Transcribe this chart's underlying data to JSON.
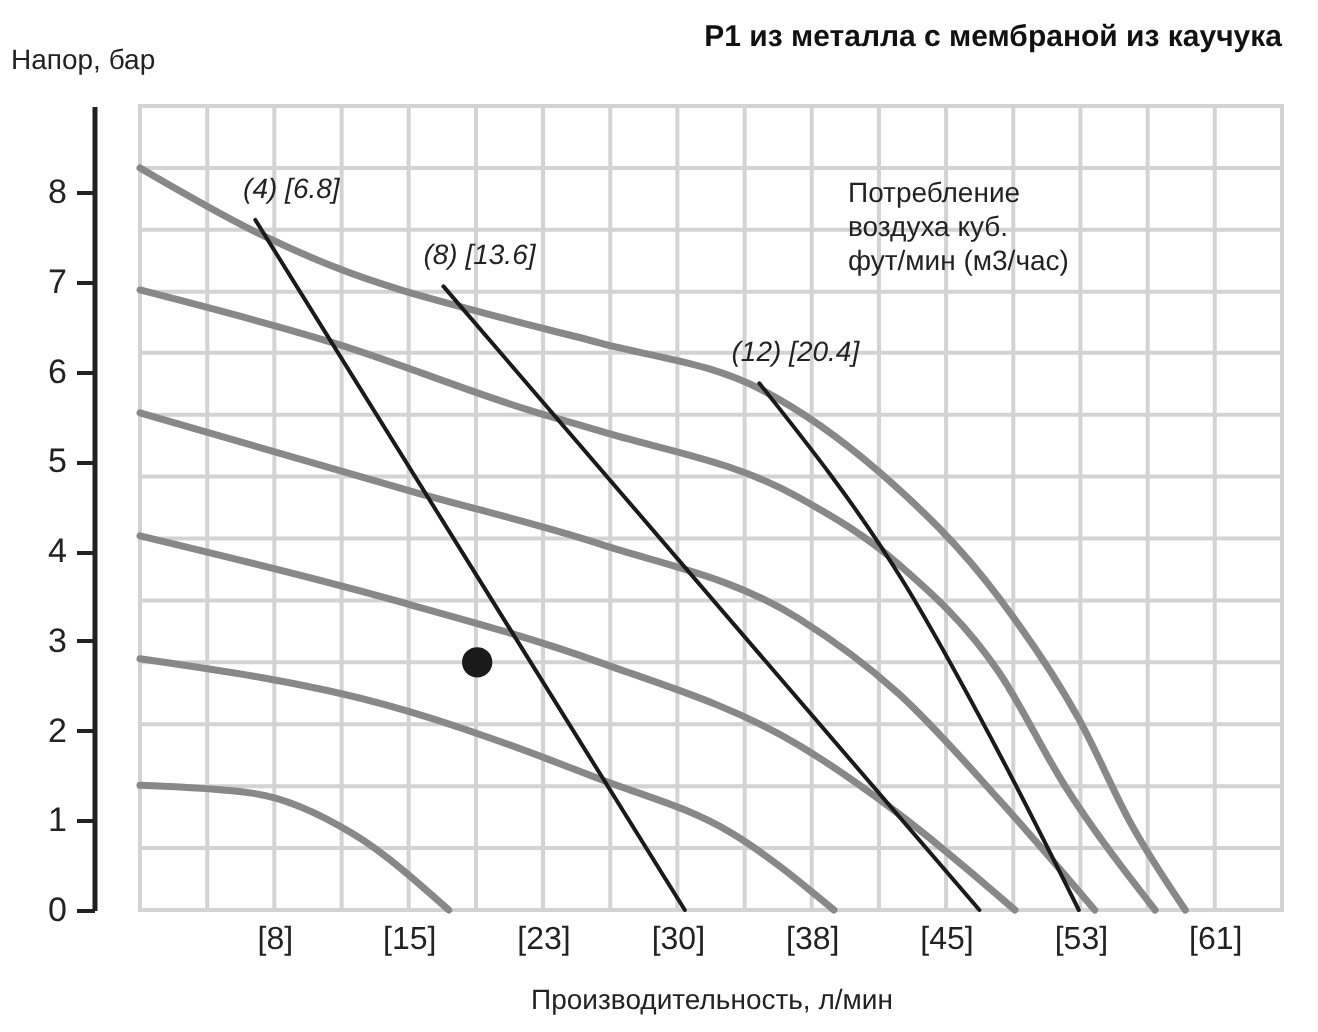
{
  "chart_data": {
    "type": "line",
    "title": "P1 из металла с мембраной из каучука",
    "xlabel": "Производительность, л/мин",
    "ylabel": "Напор, бар",
    "xlim": [
      0,
      64.35
    ],
    "ylim": [
      0,
      8.96
    ],
    "xticks": [
      {
        "value": 3.79,
        "label": null
      },
      {
        "value": 7.57,
        "label": "[8]"
      },
      {
        "value": 11.36,
        "label": null
      },
      {
        "value": 15.14,
        "label": "[15]"
      },
      {
        "value": 18.93,
        "label": null
      },
      {
        "value": 22.71,
        "label": "[23]"
      },
      {
        "value": 26.5,
        "label": null
      },
      {
        "value": 30.28,
        "label": "[30]"
      },
      {
        "value": 34.07,
        "label": null
      },
      {
        "value": 37.85,
        "label": "[38]"
      },
      {
        "value": 41.64,
        "label": null
      },
      {
        "value": 45.42,
        "label": "[45]"
      },
      {
        "value": 49.21,
        "label": null
      },
      {
        "value": 52.99,
        "label": "[53]"
      },
      {
        "value": 56.78,
        "label": null
      },
      {
        "value": 60.56,
        "label": "[61]"
      }
    ],
    "yticks": [
      0,
      {
        "value": 0.69,
        "label": null
      },
      1,
      {
        "value": 1.38,
        "label": null
      },
      2,
      {
        "value": 2.07,
        "label": null
      },
      {
        "value": 2.76,
        "label": null
      },
      3,
      {
        "value": 3.45,
        "label": null
      },
      4,
      {
        "value": 4.14,
        "label": null
      },
      {
        "value": 4.83,
        "label": null
      },
      5,
      {
        "value": 5.52,
        "label": null
      },
      6,
      {
        "value": 6.21,
        "label": null
      },
      {
        "value": 6.89,
        "label": null
      },
      7,
      {
        "value": 7.58,
        "label": null
      },
      8,
      {
        "value": 8.27,
        "label": null
      }
    ],
    "grid": true,
    "series": [
      {
        "color": "#888888",
        "x": [
          0,
          7.0,
          10.9,
          20.2,
          25.9,
          35.2,
          41.6,
          48.4,
          52.9,
          55.9,
          58.9
        ],
        "values": [
          8.27,
          7.51,
          7.17,
          6.61,
          6.32,
          5.78,
          4.89,
          3.48,
          2.13,
          0.94,
          0
        ]
      },
      {
        "color": "#888888",
        "x": [
          0,
          10.9,
          22.1,
          25.9,
          37.1,
          42.7,
          48.4,
          52.1,
          57.2
        ],
        "values": [
          6.91,
          6.32,
          5.56,
          5.34,
          4.6,
          3.86,
          2.65,
          1.39,
          0
        ]
      },
      {
        "color": "#888888",
        "x": [
          0,
          15.4,
          25.9,
          37.1,
          42.7,
          48.4,
          53.8
        ],
        "values": [
          5.54,
          4.66,
          4.08,
          3.25,
          2.42,
          1.23,
          0
        ]
      },
      {
        "color": "#888888",
        "x": [
          0,
          13.8,
          25.9,
          37.1,
          42.7,
          49.3
        ],
        "values": [
          4.17,
          3.48,
          2.76,
          1.84,
          1.08,
          0
        ]
      },
      {
        "color": "#888888",
        "x": [
          0,
          13.8,
          25.9,
          33.4,
          39.1
        ],
        "values": [
          2.8,
          2.29,
          1.46,
          0.85,
          0
        ]
      },
      {
        "color": "#888888",
        "x": [
          0,
          6.4,
          12.0,
          17.4
        ],
        "values": [
          1.39,
          1.3,
          0.85,
          0
        ]
      },
      {
        "color": "#1a1a1a",
        "x": [
          6.5,
          30.7
        ],
        "values": [
          7.69,
          0
        ]
      },
      {
        "color": "#1a1a1a",
        "x": [
          17.1,
          47.3
        ],
        "values": [
          6.95,
          0
        ]
      },
      {
        "color": "#1a1a1a",
        "x": [
          34.9,
          43.1,
          48.4,
          52.9
        ],
        "values": [
          5.87,
          3.63,
          1.75,
          0
        ]
      },
      {
        "type": "scatter",
        "color": "#1a1a1a",
        "marker": "circle",
        "x": [
          19.0
        ],
        "values": [
          2.76
        ]
      }
    ],
    "annotations": [
      {
        "text": "(4) [6.8]",
        "x": 6.5,
        "y": 7.69
      },
      {
        "text": "(8) [13.6]",
        "x": 17.1,
        "y": 6.95
      },
      {
        "text": "(12) [20.4]",
        "x": 34.9,
        "y": 5.87
      },
      "Потребление\nвоздуха куб.\nфут/мин (м3/час)"
    ]
  }
}
